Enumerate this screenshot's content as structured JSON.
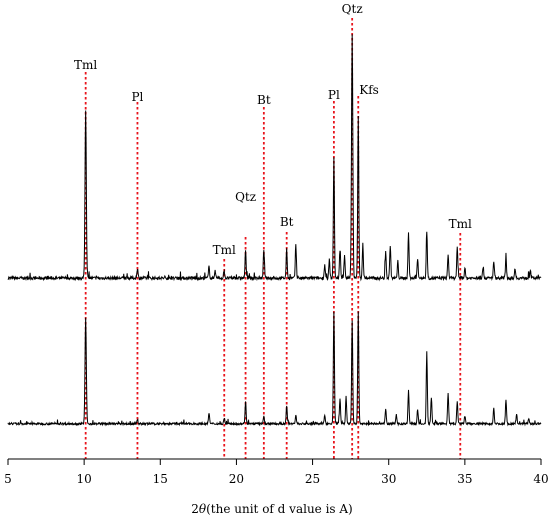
{
  "chart_data": {
    "type": "line",
    "title": "",
    "xlabel_prefix": "2",
    "xlabel_theta": "θ",
    "xlabel_suffix": "(the unit of d value is A)",
    "ylabel": "",
    "xlim": [
      5,
      40
    ],
    "xticks": [
      5,
      10,
      15,
      20,
      25,
      30,
      35,
      40
    ],
    "grid": false,
    "legend": "none",
    "line_color": "#000000",
    "marker_color": "#e8141c",
    "markers": [
      {
        "label": "Tml",
        "x": 10.1
      },
      {
        "label": "Pl",
        "x": 13.5
      },
      {
        "label": "Tml",
        "x": 19.2
      },
      {
        "label": "Qtz",
        "x": 20.6
      },
      {
        "label": "Bt",
        "x": 21.8
      },
      {
        "label": "Bt",
        "x": 23.3
      },
      {
        "label": "Pl",
        "x": 26.4
      },
      {
        "label": "Qtz",
        "x": 27.6
      },
      {
        "label": "Kfs",
        "x": 28.0
      },
      {
        "label": "Tml",
        "x": 34.7
      }
    ],
    "series": [
      {
        "baseline": 0.02,
        "peaks": [
          {
            "x": 10.1,
            "h": 1.0,
            "w": 0.06
          },
          {
            "x": 13.5,
            "h": 0.06,
            "w": 0.05
          },
          {
            "x": 18.2,
            "h": 0.07,
            "w": 0.05
          },
          {
            "x": 18.6,
            "h": 0.05,
            "w": 0.05
          },
          {
            "x": 19.2,
            "h": 0.04,
            "w": 0.05
          },
          {
            "x": 20.6,
            "h": 0.16,
            "w": 0.05
          },
          {
            "x": 21.8,
            "h": 0.17,
            "w": 0.05
          },
          {
            "x": 23.3,
            "h": 0.17,
            "w": 0.05
          },
          {
            "x": 23.9,
            "h": 0.2,
            "w": 0.05
          },
          {
            "x": 25.8,
            "h": 0.08,
            "w": 0.05
          },
          {
            "x": 26.1,
            "h": 0.11,
            "w": 0.05
          },
          {
            "x": 26.4,
            "h": 0.71,
            "w": 0.05
          },
          {
            "x": 26.8,
            "h": 0.17,
            "w": 0.05
          },
          {
            "x": 27.1,
            "h": 0.14,
            "w": 0.05
          },
          {
            "x": 27.6,
            "h": 1.45,
            "w": 0.06
          },
          {
            "x": 28.0,
            "h": 0.97,
            "w": 0.05
          },
          {
            "x": 28.3,
            "h": 0.2,
            "w": 0.05
          },
          {
            "x": 29.8,
            "h": 0.16,
            "w": 0.05
          },
          {
            "x": 30.1,
            "h": 0.2,
            "w": 0.05
          },
          {
            "x": 30.6,
            "h": 0.1,
            "w": 0.05
          },
          {
            "x": 31.3,
            "h": 0.27,
            "w": 0.05
          },
          {
            "x": 31.9,
            "h": 0.12,
            "w": 0.05
          },
          {
            "x": 32.5,
            "h": 0.28,
            "w": 0.05
          },
          {
            "x": 33.9,
            "h": 0.14,
            "w": 0.05
          },
          {
            "x": 34.5,
            "h": 0.18,
            "w": 0.05
          },
          {
            "x": 35.0,
            "h": 0.06,
            "w": 0.05
          },
          {
            "x": 36.2,
            "h": 0.07,
            "w": 0.05
          },
          {
            "x": 36.9,
            "h": 0.1,
            "w": 0.05
          },
          {
            "x": 37.7,
            "h": 0.12,
            "w": 0.05
          },
          {
            "x": 38.3,
            "h": 0.06,
            "w": 0.05
          },
          {
            "x": 39.3,
            "h": 0.05,
            "w": 0.05
          }
        ]
      },
      {
        "baseline": 0.02,
        "peaks": [
          {
            "x": 10.1,
            "h": 0.94,
            "w": 0.06
          },
          {
            "x": 13.5,
            "h": 0.04,
            "w": 0.05
          },
          {
            "x": 18.2,
            "h": 0.1,
            "w": 0.05
          },
          {
            "x": 19.2,
            "h": 0.05,
            "w": 0.05
          },
          {
            "x": 20.6,
            "h": 0.2,
            "w": 0.05
          },
          {
            "x": 21.8,
            "h": 0.07,
            "w": 0.05
          },
          {
            "x": 23.3,
            "h": 0.16,
            "w": 0.05
          },
          {
            "x": 23.9,
            "h": 0.08,
            "w": 0.05
          },
          {
            "x": 25.8,
            "h": 0.08,
            "w": 0.05
          },
          {
            "x": 26.4,
            "h": 1.0,
            "w": 0.05
          },
          {
            "x": 26.8,
            "h": 0.23,
            "w": 0.05
          },
          {
            "x": 27.2,
            "h": 0.24,
            "w": 0.05
          },
          {
            "x": 27.6,
            "h": 0.92,
            "w": 0.05
          },
          {
            "x": 28.0,
            "h": 1.0,
            "w": 0.05
          },
          {
            "x": 29.8,
            "h": 0.13,
            "w": 0.05
          },
          {
            "x": 30.5,
            "h": 0.08,
            "w": 0.05
          },
          {
            "x": 31.3,
            "h": 0.3,
            "w": 0.05
          },
          {
            "x": 31.9,
            "h": 0.13,
            "w": 0.05
          },
          {
            "x": 32.5,
            "h": 0.64,
            "w": 0.05
          },
          {
            "x": 32.8,
            "h": 0.24,
            "w": 0.05
          },
          {
            "x": 33.9,
            "h": 0.27,
            "w": 0.05
          },
          {
            "x": 34.5,
            "h": 0.2,
            "w": 0.05
          },
          {
            "x": 35.0,
            "h": 0.07,
            "w": 0.05
          },
          {
            "x": 36.9,
            "h": 0.14,
            "w": 0.05
          },
          {
            "x": 37.7,
            "h": 0.22,
            "w": 0.05
          },
          {
            "x": 38.4,
            "h": 0.08,
            "w": 0.05
          },
          {
            "x": 39.2,
            "h": 0.05,
            "w": 0.05
          }
        ]
      }
    ]
  }
}
